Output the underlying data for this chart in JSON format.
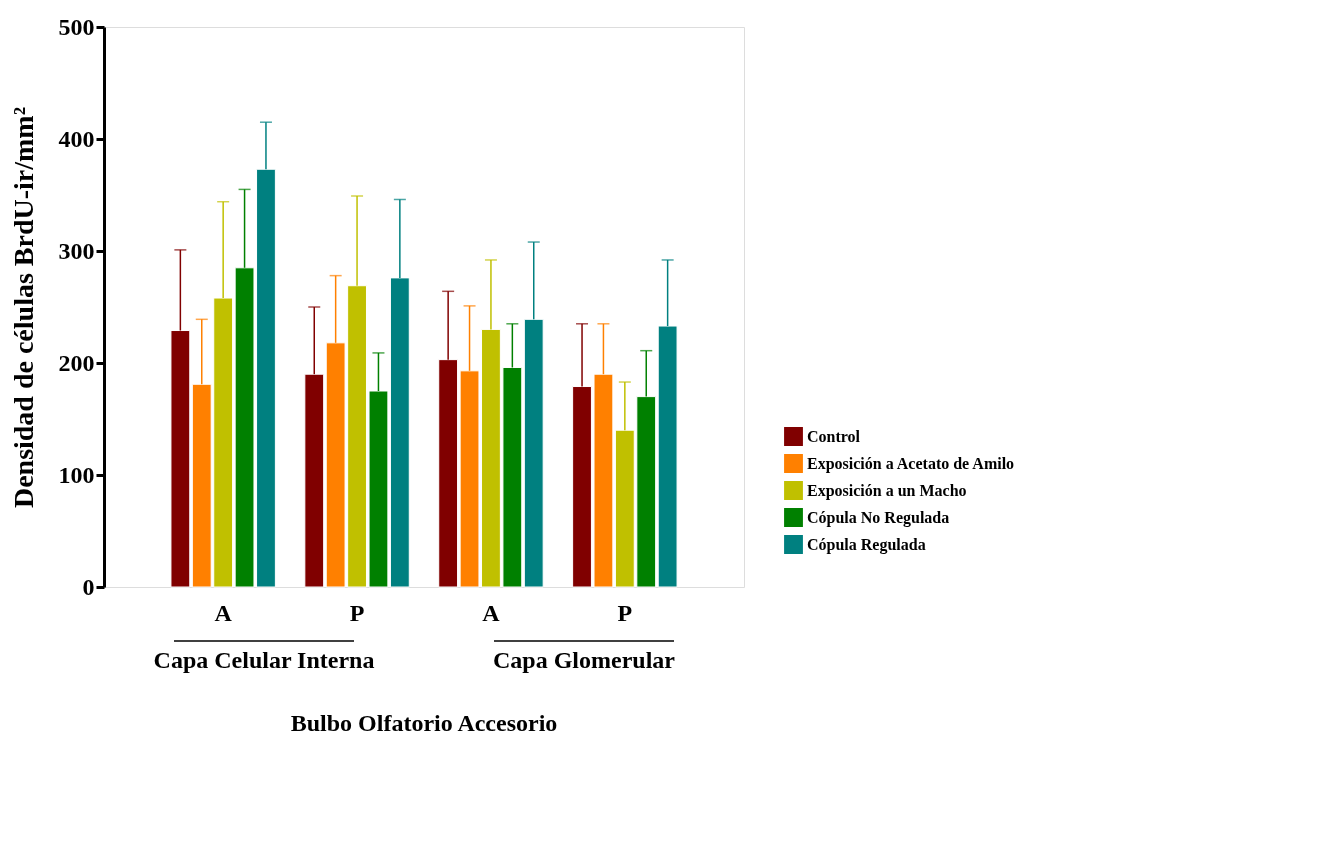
{
  "chart_data": {
    "type": "bar",
    "categories": [
      "A",
      "P",
      "A",
      "P"
    ],
    "series": [
      {
        "name": "Control",
        "color": "#800000",
        "values": [
          229,
          190,
          203,
          179
        ],
        "errors": [
          [
            229,
            301
          ],
          [
            190,
            250
          ],
          [
            203,
            264
          ],
          [
            179,
            235
          ]
        ]
      },
      {
        "name": "Exposición a Acetato de Amilo",
        "color": "#ff8000",
        "values": [
          181,
          218,
          193,
          190
        ],
        "errors": [
          [
            181,
            239
          ],
          [
            218,
            278
          ],
          [
            193,
            251
          ],
          [
            190,
            235
          ]
        ]
      },
      {
        "name": "Exposición a un Macho",
        "color": "#c0c000",
        "values": [
          258,
          269,
          230,
          140
        ],
        "errors": [
          [
            258,
            344
          ],
          [
            269,
            349
          ],
          [
            230,
            292
          ],
          [
            140,
            183
          ]
        ]
      },
      {
        "name": "Cópula No Regulada",
        "color": "#008000",
        "values": [
          285,
          175,
          196,
          170
        ],
        "errors": [
          [
            285,
            355
          ],
          [
            175,
            209
          ],
          [
            196,
            235
          ],
          [
            170,
            211
          ]
        ]
      },
      {
        "name": "Cópula Regulada",
        "color": "#008080",
        "values": [
          373,
          276,
          239,
          233
        ],
        "errors": [
          [
            373,
            415
          ],
          [
            276,
            346
          ],
          [
            239,
            308
          ],
          [
            233,
            292
          ]
        ]
      }
    ],
    "xlabel": "Bulbo Olfatorio Accesorio",
    "ylabel": "Densidad de células BrdU-ir/mm²",
    "annotations": [
      "Capa Celular Interna",
      "Capa Glomerular"
    ],
    "ylim": [
      0,
      500
    ],
    "yticks": [
      0,
      100,
      200,
      300,
      400,
      500
    ],
    "grid": false,
    "legend": "right"
  }
}
